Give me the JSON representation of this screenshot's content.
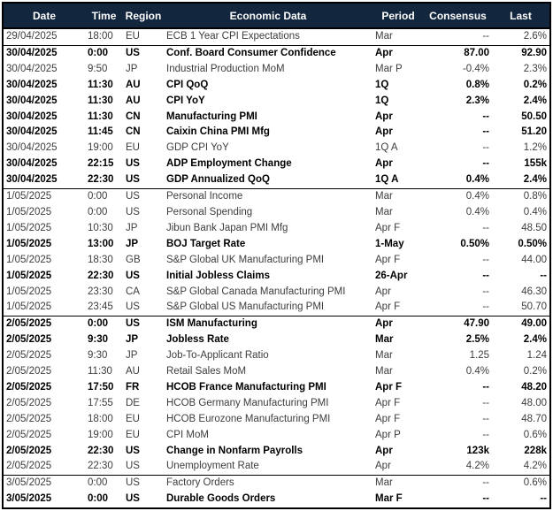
{
  "table": {
    "title": "economic-calendar",
    "colors": {
      "header_bg": "#12263E",
      "header_text": "#FFFFFF",
      "row_text": "#3D3D3D",
      "bold_row_text": "#000000",
      "border": "#000000"
    },
    "columns": [
      {
        "label": "Date"
      },
      {
        "label": "Time"
      },
      {
        "label": "Region"
      },
      {
        "label": "Economic Data"
      },
      {
        "label": "Period"
      },
      {
        "label": "Consensus"
      },
      {
        "label": "Last"
      }
    ],
    "rows": [
      {
        "date": "29/04/2025",
        "time": "18:00",
        "region": "EU",
        "event": "ECB 1 Year CPI Expectations",
        "period": "Mar",
        "consensus": "--",
        "last": "2.6%",
        "bold": false,
        "group_start": false
      },
      {
        "date": "30/04/2025",
        "time": "0:00",
        "region": "US",
        "event": "Conf. Board Consumer Confidence",
        "period": "Apr",
        "consensus": "87.00",
        "last": "92.90",
        "bold": true,
        "group_start": true
      },
      {
        "date": "30/04/2025",
        "time": "9:50",
        "region": "JP",
        "event": "Industrial Production MoM",
        "period": "Mar P",
        "consensus": "-0.4%",
        "last": "2.3%",
        "bold": false,
        "group_start": false
      },
      {
        "date": "30/04/2025",
        "time": "11:30",
        "region": "AU",
        "event": "CPI QoQ",
        "period": "1Q",
        "consensus": "0.8%",
        "last": "0.2%",
        "bold": true,
        "group_start": false
      },
      {
        "date": "30/04/2025",
        "time": "11:30",
        "region": "AU",
        "event": "CPI YoY",
        "period": "1Q",
        "consensus": "2.3%",
        "last": "2.4%",
        "bold": true,
        "group_start": false
      },
      {
        "date": "30/04/2025",
        "time": "11:30",
        "region": "CN",
        "event": "Manufacturing PMI",
        "period": "Apr",
        "consensus": "--",
        "last": "50.50",
        "bold": true,
        "group_start": false
      },
      {
        "date": "30/04/2025",
        "time": "11:45",
        "region": "CN",
        "event": "Caixin China PMI Mfg",
        "period": "Apr",
        "consensus": "--",
        "last": "51.20",
        "bold": true,
        "group_start": false
      },
      {
        "date": "30/04/2025",
        "time": "19:00",
        "region": "EU",
        "event": "GDP CPI YoY",
        "period": "1Q A",
        "consensus": "--",
        "last": "1.2%",
        "bold": false,
        "group_start": false
      },
      {
        "date": "30/04/2025",
        "time": "22:15",
        "region": "US",
        "event": "ADP Employment Change",
        "period": "Apr",
        "consensus": "--",
        "last": "155k",
        "bold": true,
        "group_start": false
      },
      {
        "date": "30/04/2025",
        "time": "22:30",
        "region": "US",
        "event": "GDP Annualized QoQ",
        "period": "1Q A",
        "consensus": "0.4%",
        "last": "2.4%",
        "bold": true,
        "group_start": false
      },
      {
        "date": "1/05/2025",
        "time": "0:00",
        "region": "US",
        "event": "Personal Income",
        "period": "Mar",
        "consensus": "0.4%",
        "last": "0.8%",
        "bold": false,
        "group_start": true
      },
      {
        "date": "1/05/2025",
        "time": "0:00",
        "region": "US",
        "event": "Personal Spending",
        "period": "Mar",
        "consensus": "0.4%",
        "last": "0.4%",
        "bold": false,
        "group_start": false
      },
      {
        "date": "1/05/2025",
        "time": "10:30",
        "region": "JP",
        "event": "Jibun Bank Japan PMI Mfg",
        "period": "Apr F",
        "consensus": "--",
        "last": "48.50",
        "bold": false,
        "group_start": false
      },
      {
        "date": "1/05/2025",
        "time": "13:00",
        "region": "JP",
        "event": "BOJ Target Rate",
        "period": "1-May",
        "consensus": "0.50%",
        "last": "0.50%",
        "bold": true,
        "group_start": false
      },
      {
        "date": "1/05/2025",
        "time": "18:30",
        "region": "GB",
        "event": "S&P Global UK Manufacturing PMI",
        "period": "Apr F",
        "consensus": "--",
        "last": "44.00",
        "bold": false,
        "group_start": false
      },
      {
        "date": "1/05/2025",
        "time": "22:30",
        "region": "US",
        "event": "Initial Jobless Claims",
        "period": "26-Apr",
        "consensus": "--",
        "last": "--",
        "bold": true,
        "group_start": false
      },
      {
        "date": "1/05/2025",
        "time": "23:30",
        "region": "CA",
        "event": "S&P Global Canada Manufacturing PMI",
        "period": "Apr",
        "consensus": "--",
        "last": "46.30",
        "bold": false,
        "group_start": false
      },
      {
        "date": "1/05/2025",
        "time": "23:45",
        "region": "US",
        "event": "S&P Global US Manufacturing PMI",
        "period": "Apr F",
        "consensus": "--",
        "last": "50.70",
        "bold": false,
        "group_start": false
      },
      {
        "date": "2/05/2025",
        "time": "0:00",
        "region": "US",
        "event": "ISM Manufacturing",
        "period": "Apr",
        "consensus": "47.90",
        "last": "49.00",
        "bold": true,
        "group_start": true
      },
      {
        "date": "2/05/2025",
        "time": "9:30",
        "region": "JP",
        "event": "Jobless Rate",
        "period": "Mar",
        "consensus": "2.5%",
        "last": "2.4%",
        "bold": true,
        "group_start": false
      },
      {
        "date": "2/05/2025",
        "time": "9:30",
        "region": "JP",
        "event": "Job-To-Applicant Ratio",
        "period": "Mar",
        "consensus": "1.25",
        "last": "1.24",
        "bold": false,
        "group_start": false
      },
      {
        "date": "2/05/2025",
        "time": "11:30",
        "region": "AU",
        "event": "Retail Sales MoM",
        "period": "Mar",
        "consensus": "0.4%",
        "last": "0.2%",
        "bold": false,
        "group_start": false
      },
      {
        "date": "2/05/2025",
        "time": "17:50",
        "region": "FR",
        "event": "HCOB France Manufacturing PMI",
        "period": "Apr F",
        "consensus": "--",
        "last": "48.20",
        "bold": true,
        "group_start": false
      },
      {
        "date": "2/05/2025",
        "time": "17:55",
        "region": "DE",
        "event": "HCOB Germany Manufacturing PMI",
        "period": "Apr F",
        "consensus": "--",
        "last": "48.00",
        "bold": false,
        "group_start": false
      },
      {
        "date": "2/05/2025",
        "time": "18:00",
        "region": "EU",
        "event": "HCOB Eurozone Manufacturing PMI",
        "period": "Apr F",
        "consensus": "--",
        "last": "48.70",
        "bold": false,
        "group_start": false
      },
      {
        "date": "2/05/2025",
        "time": "19:00",
        "region": "EU",
        "event": "CPI MoM",
        "period": "Apr P",
        "consensus": "--",
        "last": "0.6%",
        "bold": false,
        "group_start": false
      },
      {
        "date": "2/05/2025",
        "time": "22:30",
        "region": "US",
        "event": "Change in Nonfarm Payrolls",
        "period": "Apr",
        "consensus": "123k",
        "last": "228k",
        "bold": true,
        "group_start": false
      },
      {
        "date": "2/05/2025",
        "time": "22:30",
        "region": "US",
        "event": "Unemployment Rate",
        "period": "Apr",
        "consensus": "4.2%",
        "last": "4.2%",
        "bold": false,
        "group_start": false
      },
      {
        "date": "3/05/2025",
        "time": "0:00",
        "region": "US",
        "event": "Factory Orders",
        "period": "Mar",
        "consensus": "--",
        "last": "0.6%",
        "bold": false,
        "group_start": true
      },
      {
        "date": "3/05/2025",
        "time": "0:00",
        "region": "US",
        "event": "Durable Goods Orders",
        "period": "Mar F",
        "consensus": "--",
        "last": "--",
        "bold": true,
        "group_start": false
      }
    ]
  }
}
